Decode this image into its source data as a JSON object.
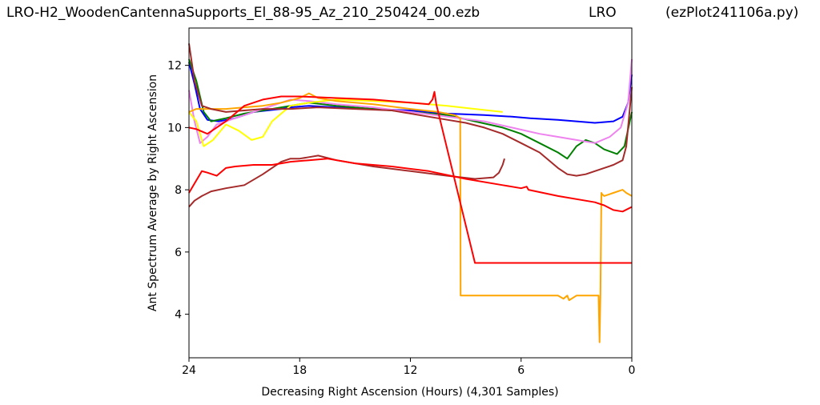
{
  "header": {
    "title_left": "LRO-H2_WoodenCantennaSupports_El_88-95_Az_210_250424_00.ezb",
    "title_mid": "LRO",
    "title_right": "(ezPlot241106a.py)"
  },
  "chart_data": {
    "type": "line",
    "xlabel": "Decreasing Right Ascension (Hours) (4,301 Samples)",
    "ylabel": "Ant Spectrum Average by Right Ascension",
    "xlim": [
      24,
      0
    ],
    "ylim": [
      2.6,
      13.2
    ],
    "xticks": [
      24,
      18,
      12,
      6,
      0
    ],
    "yticks": [
      4,
      6,
      8,
      10,
      12
    ],
    "grid": false,
    "series": [
      {
        "color": "#0000ff",
        "x": [
          24,
          23.7,
          23.4,
          23.0,
          22.4,
          21.5,
          20.5,
          19.0,
          18.5,
          17.5,
          16.0,
          14.0,
          12.0,
          10.0,
          8.0,
          6.5,
          5.5,
          4.0,
          3.0,
          2.0,
          1.0,
          0.5,
          0.2,
          0.0
        ],
        "y": [
          12.1,
          11.4,
          10.6,
          10.25,
          10.2,
          10.3,
          10.5,
          10.6,
          10.65,
          10.7,
          10.65,
          10.6,
          10.55,
          10.45,
          10.4,
          10.35,
          10.3,
          10.25,
          10.2,
          10.15,
          10.2,
          10.35,
          10.8,
          11.7
        ]
      },
      {
        "color": "#008000",
        "x": [
          24,
          23.6,
          23.2,
          22.8,
          22.0,
          21.0,
          20.0,
          18.5,
          17.5,
          16.0,
          14.0,
          12.0,
          10.0,
          8.5,
          7.0,
          6.0,
          5.0,
          4.0,
          3.5,
          3.0,
          2.5,
          2.0,
          1.5,
          0.8,
          0.4,
          0.0
        ],
        "y": [
          12.2,
          11.5,
          10.5,
          10.2,
          10.3,
          10.45,
          10.55,
          10.7,
          10.8,
          10.7,
          10.6,
          10.5,
          10.4,
          10.2,
          10.0,
          9.8,
          9.5,
          9.2,
          9.0,
          9.4,
          9.6,
          9.5,
          9.3,
          9.15,
          9.4,
          10.5
        ]
      },
      {
        "color": "#ee82ee",
        "x": [
          24,
          23.7,
          23.4,
          23.0,
          22.5,
          21.5,
          20.5,
          19.5,
          18.5,
          17.5,
          16.0,
          14.0,
          12.0,
          10.0,
          8.0,
          6.5,
          5.0,
          4.0,
          3.0,
          2.0,
          1.2,
          0.6,
          0.2,
          0.0
        ],
        "y": [
          11.2,
          10.2,
          9.5,
          9.7,
          10.1,
          10.3,
          10.5,
          10.7,
          10.9,
          10.85,
          10.75,
          10.65,
          10.5,
          10.35,
          10.2,
          10.0,
          9.8,
          9.7,
          9.6,
          9.5,
          9.7,
          10.0,
          10.8,
          12.2
        ]
      },
      {
        "color": "#ffff00",
        "x": [
          24,
          23.6,
          23.2,
          22.7,
          22.0,
          21.3,
          20.6,
          20.0,
          19.5,
          18.5,
          17.5,
          16.0,
          14.0,
          12.0,
          10.0,
          8.5,
          7.0
        ],
        "y": [
          10.5,
          10.2,
          9.4,
          9.6,
          10.1,
          9.9,
          9.6,
          9.7,
          10.2,
          10.7,
          10.8,
          10.9,
          10.85,
          10.8,
          10.7,
          10.6,
          10.5
        ]
      },
      {
        "color": "#ffa500",
        "x": [
          24,
          23.6,
          23.0,
          22.0,
          21.0,
          20.0,
          19.0,
          18.0,
          17.5,
          17.0,
          16.0,
          14.0,
          12.0,
          10.5,
          9.6,
          9.3,
          9.28,
          9.25,
          8.0,
          6.0,
          4.0,
          3.7,
          3.5,
          3.4,
          3.0,
          2.0,
          1.8,
          1.75,
          1.7,
          1.65,
          1.6,
          1.5,
          1.0,
          0.5,
          0.3,
          0.0
        ],
        "y": [
          10.5,
          10.6,
          10.6,
          10.6,
          10.65,
          10.7,
          10.8,
          10.95,
          11.1,
          10.95,
          10.85,
          10.75,
          10.6,
          10.5,
          10.4,
          10.3,
          4.6,
          4.6,
          4.6,
          4.6,
          4.6,
          4.5,
          4.6,
          4.45,
          4.6,
          4.6,
          4.6,
          3.1,
          4.6,
          7.9,
          7.85,
          7.8,
          7.9,
          8.0,
          7.9,
          7.8
        ]
      },
      {
        "color": "#a52a2a",
        "x": [
          24,
          23.7,
          23.3,
          22.8,
          22.0,
          21.0,
          20.0,
          19.0,
          18.5,
          18.0,
          17.5,
          17.0,
          16.0,
          14.0,
          12.0,
          10.0,
          8.5,
          7.5,
          7.2,
          7.0,
          6.9
        ],
        "y": [
          7.45,
          7.65,
          7.8,
          7.95,
          8.05,
          8.15,
          8.5,
          8.9,
          9.0,
          9.0,
          9.05,
          9.1,
          8.95,
          8.75,
          8.6,
          8.45,
          8.35,
          8.4,
          8.55,
          8.8,
          9.0
        ]
      },
      {
        "color": "#a52a2a",
        "x": [
          24,
          23.7,
          23.3,
          22.8,
          22.0,
          21.0,
          20.0,
          18.5,
          17.0,
          15.0,
          13.0,
          12.0,
          11.0,
          10.0,
          9.0,
          8.0,
          7.0,
          6.0,
          5.0,
          4.0,
          3.5,
          3.0,
          2.5,
          2.0,
          1.5,
          1.0,
          0.5,
          0.3,
          0.0
        ],
        "y": [
          12.7,
          11.5,
          10.7,
          10.6,
          10.5,
          10.55,
          10.6,
          10.6,
          10.65,
          10.6,
          10.55,
          10.45,
          10.35,
          10.25,
          10.15,
          10.0,
          9.8,
          9.5,
          9.2,
          8.7,
          8.5,
          8.45,
          8.5,
          8.6,
          8.7,
          8.8,
          8.95,
          9.4,
          11.3
        ]
      },
      {
        "color": "#ff0000",
        "x": [
          24,
          23.6,
          23.0,
          22.0,
          21.0,
          20.0,
          19.0,
          18.0,
          16.0,
          14.0,
          12.0,
          11.0,
          10.8,
          10.7,
          10.6,
          8.5,
          6.0,
          4.0,
          2.0,
          0.0
        ],
        "y": [
          10.0,
          9.95,
          9.8,
          10.2,
          10.7,
          10.9,
          11.0,
          11.0,
          10.95,
          10.9,
          10.8,
          10.75,
          10.9,
          11.15,
          10.75,
          5.65,
          5.65,
          5.65,
          5.65,
          5.65
        ]
      },
      {
        "color": "#ff0000",
        "x": [
          24,
          23.7,
          23.3,
          23.0,
          22.5,
          22.0,
          21.5,
          20.5,
          19.5,
          19.0,
          18.5,
          17.5,
          16.5,
          15.0,
          13.0,
          11.0,
          9.0,
          7.0,
          6.0,
          5.7,
          5.6,
          4.0,
          2.0,
          1.5,
          1.0,
          0.5,
          0.0
        ],
        "y": [
          7.9,
          8.2,
          8.6,
          8.55,
          8.45,
          8.7,
          8.75,
          8.8,
          8.8,
          8.85,
          8.9,
          8.95,
          9.0,
          8.85,
          8.75,
          8.6,
          8.35,
          8.15,
          8.05,
          8.1,
          8.0,
          7.8,
          7.6,
          7.5,
          7.35,
          7.3,
          7.45
        ]
      }
    ]
  }
}
